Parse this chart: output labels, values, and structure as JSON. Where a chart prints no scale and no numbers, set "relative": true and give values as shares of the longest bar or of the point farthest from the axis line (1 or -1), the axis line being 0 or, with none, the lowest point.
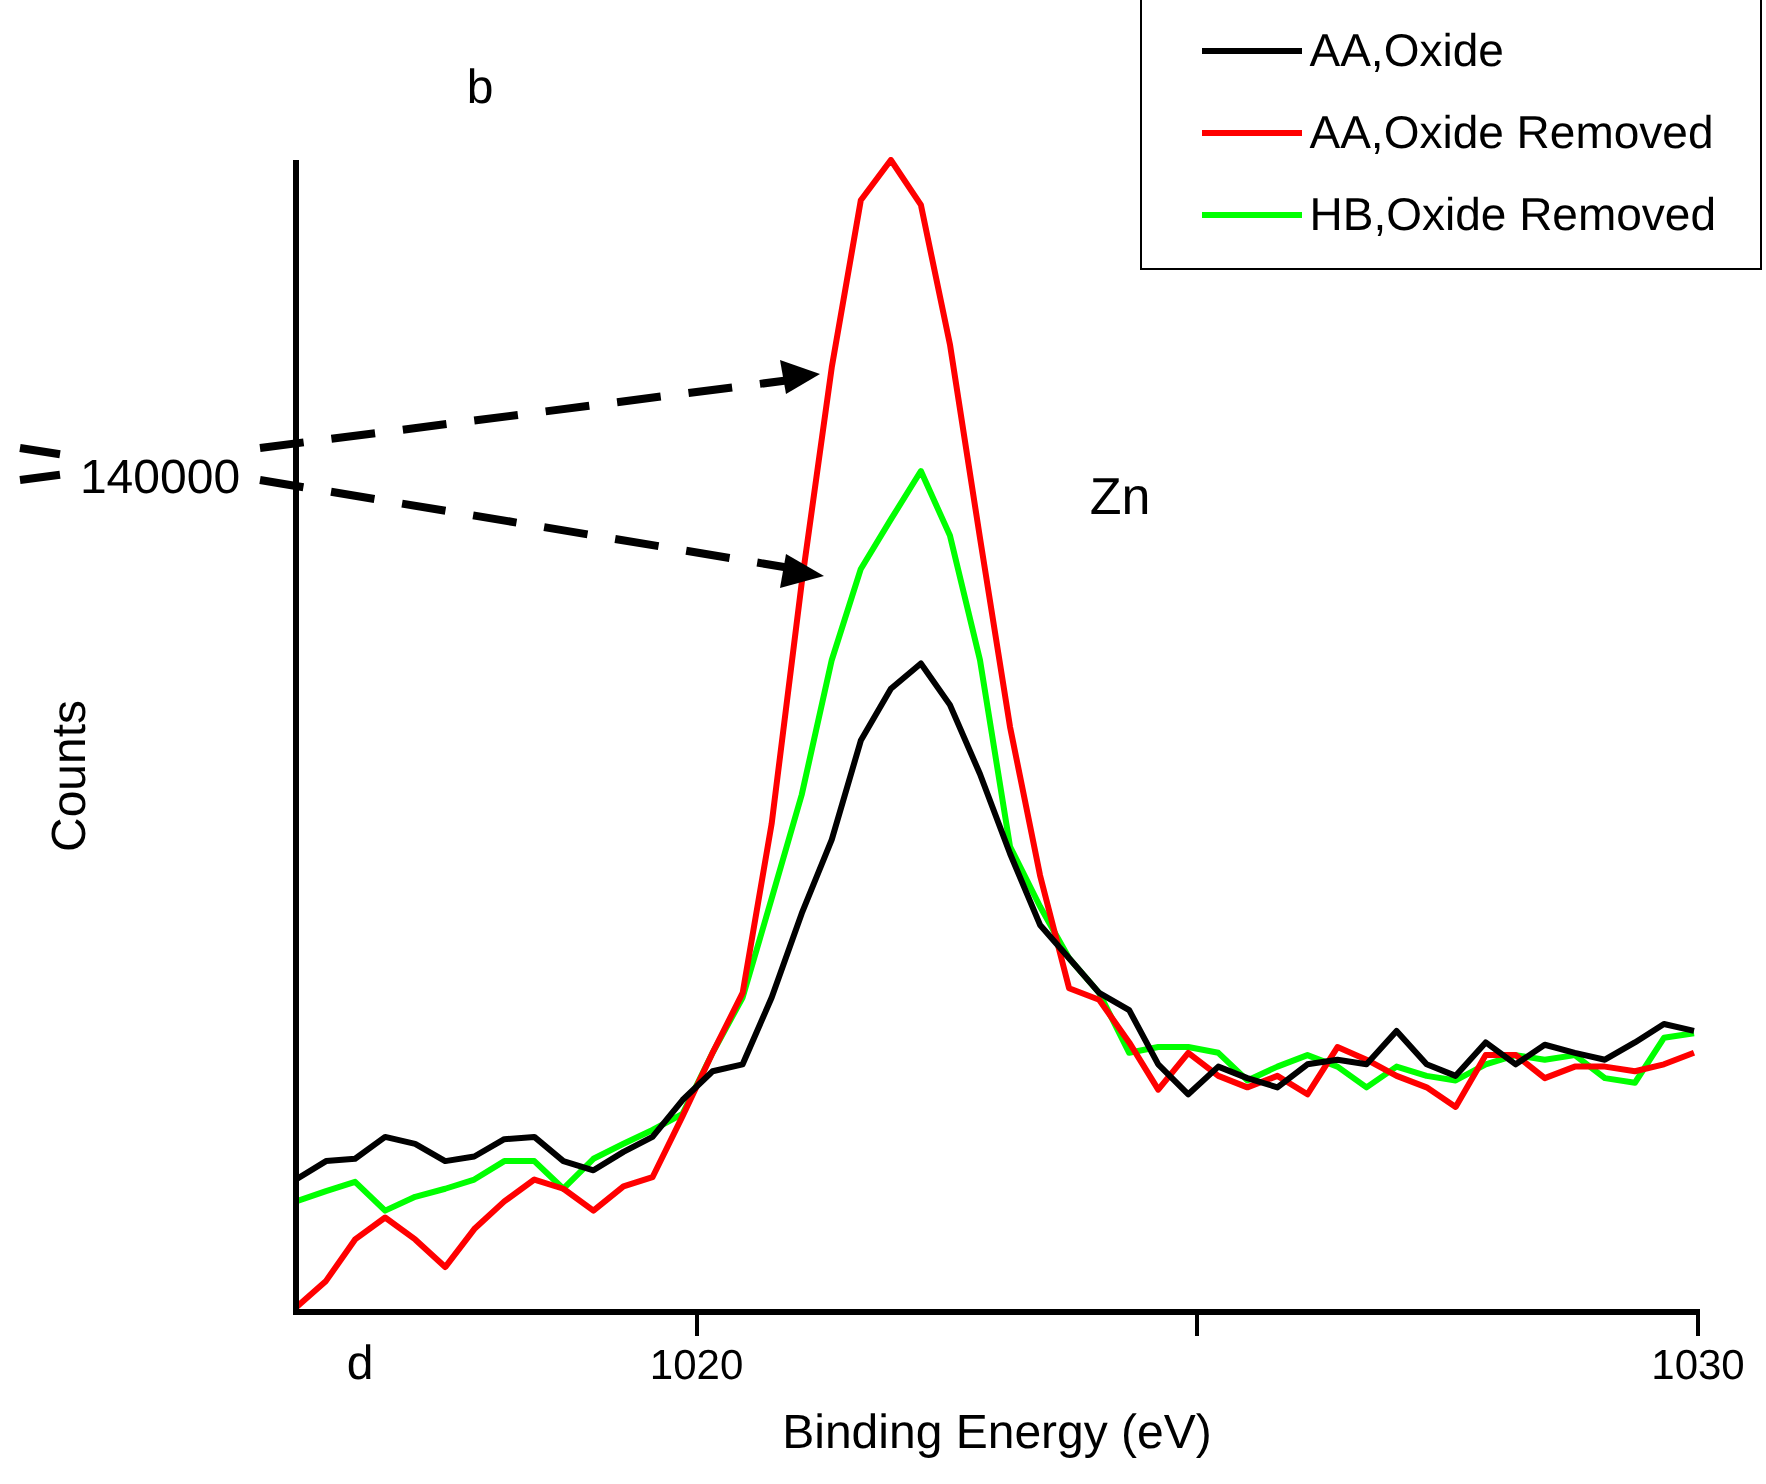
{
  "chart_data": {
    "type": "line",
    "xlabel": "Binding Energy (eV)",
    "ylabel": "Counts",
    "relative": true,
    "xlim": [
      1016,
      1030
    ],
    "xticks": [
      1020,
      {
        "value": 1025,
        "label": null
      },
      1030
    ],
    "grid": false,
    "legend": "top right",
    "marker": "none",
    "line_style": "solid",
    "annotations": [
      "b",
      "Zn",
      "140000",
      "d"
    ],
    "x": [
      1016.0,
      1016.3,
      1016.59,
      1016.89,
      1017.19,
      1017.49,
      1017.78,
      1018.08,
      1018.38,
      1018.67,
      1018.97,
      1019.27,
      1019.56,
      1019.86,
      1020.16,
      1020.46,
      1020.75,
      1021.05,
      1021.35,
      1021.64,
      1021.94,
      1022.24,
      1022.53,
      1022.83,
      1023.13,
      1023.43,
      1023.72,
      1024.02,
      1024.32,
      1024.61,
      1024.91,
      1025.21,
      1025.5,
      1025.8,
      1026.1,
      1026.4,
      1026.69,
      1026.99,
      1027.29,
      1027.58,
      1027.88,
      1028.18,
      1028.47,
      1028.77,
      1029.07,
      1029.37,
      1029.66,
      1029.96
    ],
    "series": [
      {
        "name": "AA,Oxide",
        "color": "#000000",
        "values": [
          0.115,
          0.131,
          0.133,
          0.152,
          0.146,
          0.131,
          0.135,
          0.15,
          0.152,
          0.131,
          0.123,
          0.139,
          0.152,
          0.184,
          0.209,
          0.215,
          0.273,
          0.346,
          0.41,
          0.496,
          0.541,
          0.563,
          0.527,
          0.467,
          0.398,
          0.336,
          0.307,
          0.277,
          0.262,
          0.215,
          0.189,
          0.213,
          0.203,
          0.195,
          0.215,
          0.219,
          0.215,
          0.244,
          0.215,
          0.205,
          0.234,
          0.215,
          0.232,
          0.225,
          0.219,
          0.234,
          0.25,
          0.244
        ]
      },
      {
        "name": "AA,Oxide Removed",
        "color": "#ff0000",
        "values": [
          0.004,
          0.027,
          0.063,
          0.082,
          0.063,
          0.039,
          0.072,
          0.096,
          0.115,
          0.107,
          0.088,
          0.109,
          0.117,
          0.17,
          0.225,
          0.277,
          0.424,
          0.633,
          0.82,
          0.965,
          1.0,
          0.961,
          0.84,
          0.672,
          0.508,
          0.379,
          0.281,
          0.271,
          0.234,
          0.193,
          0.225,
          0.205,
          0.195,
          0.205,
          0.189,
          0.23,
          0.219,
          0.205,
          0.195,
          0.178,
          0.223,
          0.223,
          0.203,
          0.213,
          0.213,
          0.209,
          0.215,
          0.225
        ]
      },
      {
        "name": "HB,Oxide Removed",
        "color": "#00ff00",
        "values": [
          0.096,
          0.105,
          0.113,
          0.088,
          0.1,
          0.107,
          0.115,
          0.131,
          0.131,
          0.107,
          0.133,
          0.146,
          0.158,
          0.172,
          0.225,
          0.273,
          0.359,
          0.449,
          0.566,
          0.645,
          0.688,
          0.73,
          0.674,
          0.566,
          0.404,
          0.352,
          0.307,
          0.277,
          0.225,
          0.23,
          0.23,
          0.225,
          0.201,
          0.213,
          0.223,
          0.213,
          0.195,
          0.213,
          0.205,
          0.201,
          0.215,
          0.223,
          0.219,
          0.223,
          0.203,
          0.199,
          0.238,
          0.242
        ]
      }
    ]
  }
}
